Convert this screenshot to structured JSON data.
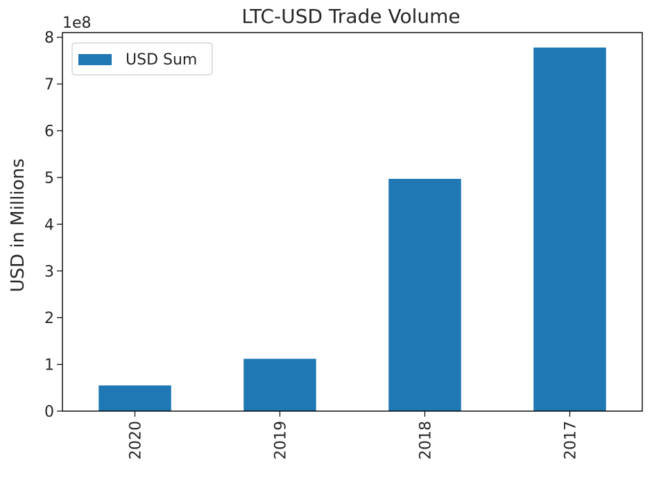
{
  "chart_data": {
    "type": "bar",
    "title": "LTC-USD Trade Volume",
    "xlabel": "",
    "ylabel": "USD in Millions",
    "categories": [
      "2020",
      "2019",
      "2018",
      "2017"
    ],
    "series": [
      {
        "name": "USD Sum",
        "values": [
          55000000,
          112000000,
          497000000,
          778000000
        ]
      }
    ],
    "ylim": [
      0,
      810000000
    ],
    "yticks": [
      0,
      100000000,
      200000000,
      300000000,
      400000000,
      500000000,
      600000000,
      700000000,
      800000000
    ],
    "ytick_labels": [
      "0",
      "1",
      "2",
      "3",
      "4",
      "5",
      "6",
      "7",
      "8"
    ],
    "y_offset_label": "1e8",
    "legend_position": "top-left",
    "grid": false,
    "bar_color": "#1f77b4"
  }
}
